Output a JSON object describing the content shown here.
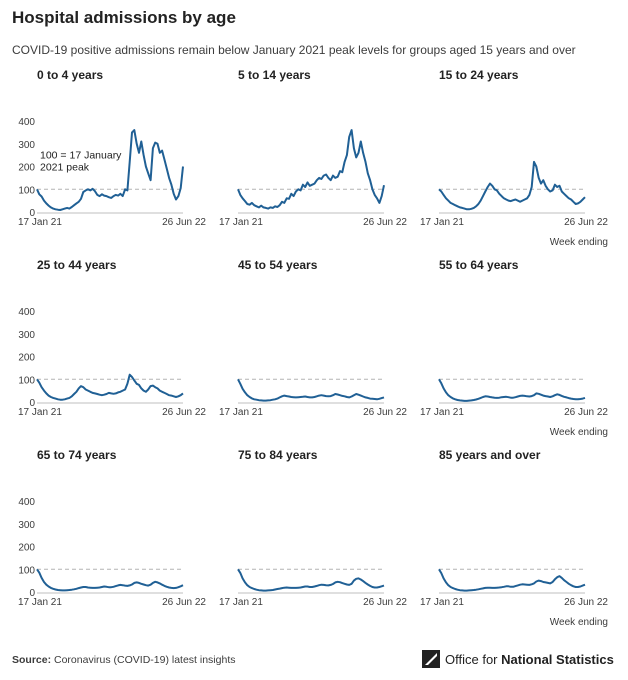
{
  "header": {
    "title": "Hospital admissions by age",
    "subtitle": "COVID-19 positive admissions remain below January 2021 peak levels for groups aged 15 years and over"
  },
  "chart_data": [
    {
      "type": "line",
      "title": "0 to 4 years",
      "x_ticks": [
        "17 Jan 21",
        "26 Jun 22"
      ],
      "y_ticks": [
        0,
        100,
        200,
        300,
        400
      ],
      "ylim": [
        0,
        400
      ],
      "reference_line": 100,
      "annotation": "100 = 17 January 2021 peak",
      "series": [
        {
          "color": "#206095",
          "values": [
            100,
            78,
            68,
            50,
            38,
            28,
            20,
            15,
            12,
            10,
            9,
            12,
            15,
            18,
            15,
            22,
            30,
            38,
            45,
            58,
            88,
            95,
            100,
            95,
            102,
            92,
            75,
            70,
            78,
            72,
            70,
            65,
            62,
            70,
            75,
            72,
            80,
            70,
            100,
            95,
            220,
            350,
            360,
            300,
            260,
            310,
            250,
            200,
            170,
            140,
            280,
            305,
            300,
            260,
            270,
            230,
            190,
            150,
            120,
            80,
            55,
            70,
            105,
            200
          ]
        }
      ],
      "xlabel": ""
    },
    {
      "type": "line",
      "title": "5 to 14 years",
      "x_ticks": [
        "17 Jan 21",
        "26 Jun 22"
      ],
      "y_ticks": [],
      "ylim": [
        0,
        400
      ],
      "reference_line": 100,
      "series": [
        {
          "color": "#206095",
          "values": [
            100,
            75,
            60,
            48,
            35,
            32,
            40,
            30,
            25,
            20,
            28,
            20,
            18,
            15,
            20,
            18,
            25,
            22,
            30,
            45,
            40,
            60,
            58,
            80,
            70,
            90,
            100,
            95,
            120,
            110,
            130,
            115,
            120,
            125,
            140,
            150,
            145,
            160,
            165,
            150,
            140,
            160,
            150,
            155,
            180,
            175,
            220,
            250,
            330,
            360,
            280,
            240,
            260,
            310,
            260,
            220,
            170,
            140,
            100,
            75,
            60,
            40,
            70,
            118
          ]
        }
      ],
      "xlabel": ""
    },
    {
      "type": "line",
      "title": "15 to 24 years",
      "x_ticks": [
        "17 Jan 21",
        "26 Jun 22"
      ],
      "y_ticks": [],
      "ylim": [
        0,
        400
      ],
      "reference_line": 100,
      "series": [
        {
          "color": "#206095",
          "values": [
            100,
            90,
            75,
            60,
            50,
            40,
            35,
            30,
            25,
            20,
            18,
            15,
            12,
            12,
            14,
            18,
            25,
            35,
            50,
            70,
            90,
            110,
            125,
            115,
            100,
            95,
            80,
            70,
            60,
            55,
            50,
            48,
            52,
            55,
            50,
            45,
            50,
            55,
            60,
            75,
            110,
            220,
            200,
            150,
            125,
            140,
            115,
            100,
            90,
            95,
            120,
            110,
            115,
            90,
            80,
            70,
            60,
            55,
            45,
            35,
            38,
            45,
            55,
            65
          ]
        }
      ],
      "xlabel": "Week ending"
    },
    {
      "type": "line",
      "title": "25 to 44 years",
      "x_ticks": [
        "17 Jan 21",
        "26 Jun 22"
      ],
      "y_ticks": [
        0,
        100,
        200,
        300,
        400
      ],
      "ylim": [
        0,
        400
      ],
      "reference_line": 100,
      "series": [
        {
          "color": "#206095",
          "values": [
            100,
            85,
            65,
            50,
            38,
            28,
            22,
            18,
            15,
            12,
            10,
            10,
            12,
            15,
            18,
            25,
            35,
            45,
            60,
            70,
            65,
            55,
            50,
            45,
            40,
            38,
            35,
            32,
            30,
            32,
            35,
            40,
            38,
            36,
            38,
            42,
            45,
            50,
            55,
            80,
            120,
            110,
            95,
            80,
            75,
            60,
            50,
            45,
            55,
            70,
            72,
            65,
            60,
            50,
            45,
            40,
            35,
            30,
            28,
            25,
            22,
            25,
            30,
            38
          ]
        }
      ],
      "xlabel": ""
    },
    {
      "type": "line",
      "title": "45 to 54 years",
      "x_ticks": [
        "17 Jan 21",
        "26 Jun 22"
      ],
      "y_ticks": [],
      "ylim": [
        0,
        400
      ],
      "reference_line": 100,
      "series": [
        {
          "color": "#206095",
          "values": [
            100,
            80,
            58,
            42,
            30,
            22,
            16,
            12,
            10,
            8,
            7,
            6,
            6,
            7,
            8,
            10,
            12,
            15,
            20,
            25,
            28,
            26,
            24,
            22,
            21,
            20,
            21,
            22,
            23,
            24,
            22,
            20,
            20,
            22,
            25,
            28,
            30,
            28,
            26,
            25,
            26,
            30,
            35,
            33,
            30,
            27,
            25,
            22,
            20,
            24,
            30,
            35,
            32,
            28,
            24,
            20,
            18,
            15,
            14,
            13,
            12,
            14,
            17,
            20
          ]
        }
      ],
      "xlabel": ""
    },
    {
      "type": "line",
      "title": "55 to 64 years",
      "x_ticks": [
        "17 Jan 21",
        "26 Jun 22"
      ],
      "y_ticks": [],
      "ylim": [
        0,
        400
      ],
      "reference_line": 100,
      "series": [
        {
          "color": "#206095",
          "values": [
            100,
            82,
            60,
            42,
            30,
            22,
            16,
            12,
            9,
            7,
            6,
            5,
            5,
            6,
            7,
            9,
            11,
            14,
            18,
            22,
            25,
            24,
            22,
            20,
            19,
            18,
            19,
            21,
            22,
            23,
            21,
            19,
            19,
            21,
            24,
            27,
            28,
            27,
            25,
            24,
            26,
            30,
            38,
            36,
            32,
            28,
            26,
            24,
            22,
            25,
            30,
            34,
            31,
            27,
            23,
            20,
            17,
            15,
            13,
            12,
            12,
            13,
            15,
            18
          ]
        }
      ],
      "xlabel": "Week ending"
    },
    {
      "type": "line",
      "title": "65 to 74 years",
      "x_ticks": [
        "17 Jan 21",
        "26 Jun 22"
      ],
      "y_ticks": [
        0,
        100,
        200,
        300,
        400
      ],
      "ylim": [
        0,
        400
      ],
      "reference_line": 100,
      "series": [
        {
          "color": "#206095",
          "values": [
            100,
            85,
            62,
            44,
            32,
            24,
            18,
            14,
            11,
            9,
            8,
            7,
            7,
            8,
            9,
            10,
            12,
            14,
            17,
            20,
            22,
            22,
            20,
            19,
            18,
            18,
            19,
            20,
            22,
            24,
            23,
            21,
            21,
            23,
            26,
            29,
            31,
            30,
            28,
            27,
            29,
            33,
            40,
            42,
            40,
            36,
            33,
            30,
            28,
            32,
            40,
            45,
            42,
            38,
            32,
            27,
            23,
            20,
            18,
            17,
            18,
            21,
            25,
            30
          ]
        }
      ],
      "xlabel": ""
    },
    {
      "type": "line",
      "title": "75 to 84 years",
      "x_ticks": [
        "17 Jan 21",
        "26 Jun 22"
      ],
      "y_ticks": [],
      "ylim": [
        0,
        400
      ],
      "reference_line": 100,
      "series": [
        {
          "color": "#206095",
          "values": [
            100,
            84,
            60,
            42,
            30,
            22,
            17,
            13,
            10,
            8,
            7,
            6,
            6,
            7,
            8,
            9,
            11,
            13,
            15,
            17,
            19,
            20,
            19,
            18,
            18,
            18,
            19,
            20,
            22,
            24,
            24,
            22,
            22,
            24,
            27,
            30,
            32,
            31,
            30,
            29,
            31,
            35,
            42,
            45,
            43,
            39,
            36,
            33,
            31,
            36,
            50,
            58,
            60,
            55,
            48,
            40,
            33,
            27,
            22,
            20,
            20,
            22,
            25,
            28
          ]
        }
      ],
      "xlabel": ""
    },
    {
      "type": "line",
      "title": "85 years and over",
      "x_ticks": [
        "17 Jan 21",
        "26 Jun 22"
      ],
      "y_ticks": [],
      "ylim": [
        0,
        400
      ],
      "reference_line": 100,
      "series": [
        {
          "color": "#206095",
          "values": [
            100,
            83,
            60,
            42,
            30,
            22,
            17,
            13,
            10,
            8,
            7,
            6,
            6,
            7,
            8,
            9,
            10,
            12,
            14,
            16,
            18,
            19,
            19,
            18,
            18,
            19,
            20,
            21,
            23,
            25,
            25,
            23,
            23,
            26,
            29,
            32,
            34,
            33,
            32,
            31,
            34,
            38,
            46,
            50,
            48,
            44,
            42,
            40,
            38,
            44,
            56,
            65,
            70,
            62,
            52,
            44,
            36,
            30,
            25,
            22,
            22,
            24,
            28,
            32
          ]
        }
      ],
      "xlabel": "Week ending"
    }
  ],
  "footer": {
    "source_label": "Source:",
    "source_text": " Coronavirus (COVID-19) latest insights",
    "org_prefix": "Office for ",
    "org_strong": "National Statistics"
  }
}
